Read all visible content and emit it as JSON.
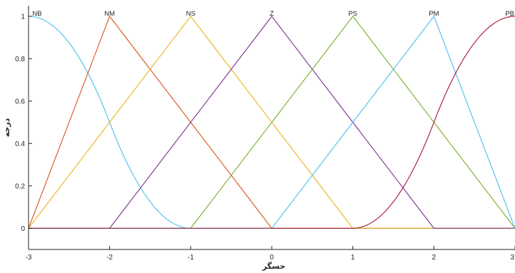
{
  "chart_data": {
    "type": "line",
    "title": "",
    "xlabel": "حسگر",
    "ylabel": "درجه",
    "xlim": [
      -3,
      3
    ],
    "ylim": [
      -0.1,
      1.05
    ],
    "x_ticks": [
      -3,
      -2,
      -1,
      0,
      1,
      2,
      3
    ],
    "x_tick_labels": [
      "-3",
      "-2",
      "-1",
      "0",
      "1",
      "2",
      "3"
    ],
    "y_ticks": [
      0,
      0.2,
      0.4,
      0.6,
      0.8,
      1
    ],
    "y_tick_labels": [
      "0",
      "0.2",
      "0.4",
      "0.6",
      "0.8",
      "1"
    ],
    "grid": false,
    "series": [
      {
        "name": "NB",
        "shape": "zmf",
        "params": [
          -3,
          -1
        ],
        "color": "#4DBEEE"
      },
      {
        "name": "NM",
        "shape": "trimf",
        "params": [
          -3,
          -2,
          0
        ],
        "color": "#D95319"
      },
      {
        "name": "NS",
        "shape": "trimf",
        "params": [
          -3,
          -1,
          1
        ],
        "color": "#EDB120"
      },
      {
        "name": "Z",
        "shape": "trimf",
        "params": [
          -2,
          0,
          2
        ],
        "color": "#7E2F8E"
      },
      {
        "name": "PS",
        "shape": "trimf",
        "params": [
          -1,
          1,
          3
        ],
        "color": "#77AC30"
      },
      {
        "name": "PM",
        "shape": "trimf",
        "params": [
          0,
          2,
          3
        ],
        "color": "#4DBEEE"
      },
      {
        "name": "PB",
        "shape": "smf",
        "params": [
          1,
          3
        ],
        "color": "#A2142F"
      }
    ]
  }
}
